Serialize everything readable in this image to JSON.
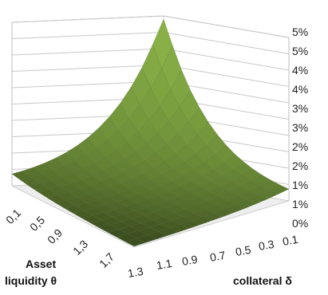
{
  "chart_data": {
    "type": "surface",
    "title": "",
    "z_axis": {
      "tick_labels": [
        "0%",
        "1%",
        "1%",
        "2%",
        "2%",
        "3%",
        "3%",
        "4%",
        "4%",
        "5%",
        "5%"
      ],
      "range": [
        0,
        0.05
      ]
    },
    "x_axis": {
      "label_line1": "Asset",
      "label_line2": "liquidity θ",
      "tick_labels": [
        "0,1",
        "0,5",
        "0,9",
        "1,3",
        "1,7"
      ]
    },
    "y_axis": {
      "label": "collateral δ",
      "tick_labels": [
        "1.3",
        "1.1",
        "0.9",
        "0.7",
        "0.5",
        "0.3",
        "0.1"
      ]
    },
    "peak": {
      "theta": 0.1,
      "delta": 0.1,
      "value": 0.05
    },
    "surface_color": "#8db24a",
    "grid": true
  }
}
